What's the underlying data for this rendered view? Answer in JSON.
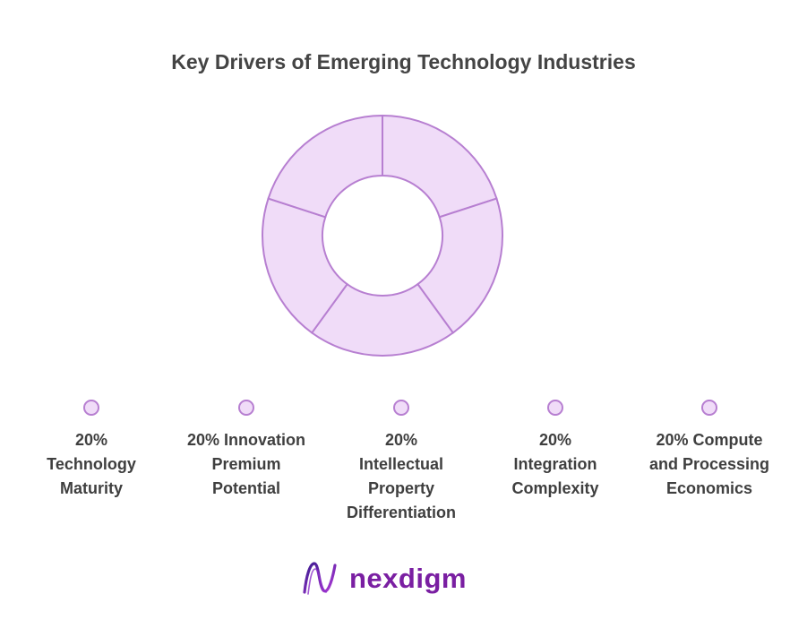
{
  "title": "Key Drivers of Emerging Technology Industries",
  "colors": {
    "slice_fill": "#f0dcf8",
    "slice_stroke": "#b77fd1",
    "brand": "#7a1fa2"
  },
  "chart_data": {
    "type": "pie",
    "donut": true,
    "title": "Key Drivers of Emerging Technology Industries",
    "categories": [
      "Technology Maturity",
      "Innovation Premium Potential",
      "Intellectual Property Differentiation",
      "Integration Complexity",
      "Compute and Processing Economics"
    ],
    "values": [
      20,
      20,
      20,
      20,
      20
    ],
    "legend_position": "bottom"
  },
  "legend": [
    {
      "label": "20%\nTechnology\nMaturity"
    },
    {
      "label": "20% Innovation\nPremium\nPotential"
    },
    {
      "label": "20%\nIntellectual\nProperty\nDifferentiation"
    },
    {
      "label": "20%\nIntegration\nComplexity"
    },
    {
      "label": "20% Compute\nand Processing\nEconomics"
    }
  ],
  "logo": {
    "text": "nexdigm",
    "icon": "nexdigm-logo-icon"
  }
}
